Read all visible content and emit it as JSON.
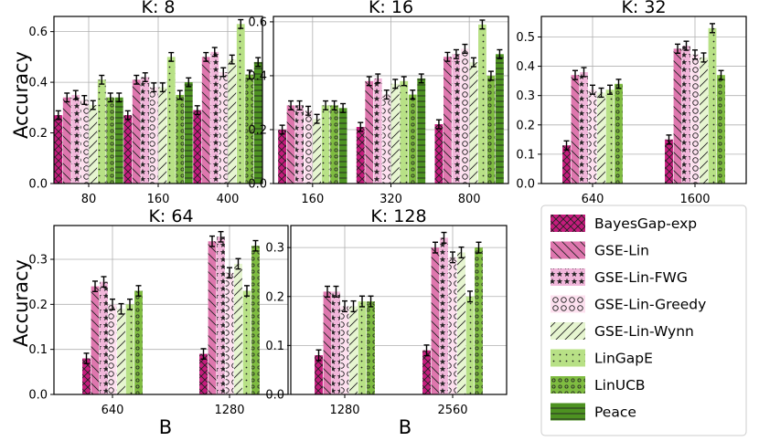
{
  "figure": {
    "ylabel": "Accuracy",
    "xlabel": "B"
  },
  "legend": {
    "placement": "bottom-right",
    "entries": [
      {
        "name": "BayesGap-exp",
        "color": "#c51b7d",
        "pattern": "cross-hatch"
      },
      {
        "name": "GSE-Lin",
        "color": "#de77ae",
        "pattern": "backslash"
      },
      {
        "name": "GSE-Lin-FWG",
        "color": "#f1b6da",
        "pattern": "stars"
      },
      {
        "name": "GSE-Lin-Greedy",
        "color": "#fde0ef",
        "pattern": "circles"
      },
      {
        "name": "GSE-Lin-Wynn",
        "color": "#e6f5d0",
        "pattern": "slash"
      },
      {
        "name": "LinGapE",
        "color": "#b8e186",
        "pattern": "dots"
      },
      {
        "name": "LinUCB",
        "color": "#7fbc41",
        "pattern": "small-circles"
      },
      {
        "name": "Peace",
        "color": "#4d9221",
        "pattern": "horizontal"
      }
    ]
  },
  "chart_data": [
    {
      "type": "bar",
      "title": "K: 8",
      "categories": [
        "80",
        "160",
        "400"
      ],
      "ylim": [
        0,
        0.66
      ],
      "yticks": [
        "0.0",
        "0.2",
        "0.4",
        "0.6"
      ],
      "ytick_values": [
        0,
        0.2,
        0.4,
        0.6
      ],
      "grid": true,
      "series": [
        {
          "name": "BayesGap-exp",
          "values": [
            0.27,
            0.27,
            0.29
          ]
        },
        {
          "name": "GSE-Lin",
          "values": [
            0.34,
            0.41,
            0.5
          ]
        },
        {
          "name": "GSE-Lin-FWG",
          "values": [
            0.35,
            0.42,
            0.52
          ]
        },
        {
          "name": "GSE-Lin-Greedy",
          "values": [
            0.33,
            0.38,
            0.44
          ]
        },
        {
          "name": "GSE-Lin-Wynn",
          "values": [
            0.31,
            0.38,
            0.49
          ]
        },
        {
          "name": "LinGapE",
          "values": [
            0.41,
            0.5,
            0.63
          ]
        },
        {
          "name": "LinUCB",
          "values": [
            0.34,
            0.35,
            0.43
          ]
        },
        {
          "name": "Peace",
          "values": [
            0.34,
            0.4,
            0.48
          ]
        }
      ]
    },
    {
      "type": "bar",
      "title": "K: 16",
      "categories": [
        "160",
        "320",
        "800"
      ],
      "ylim": [
        0,
        0.62
      ],
      "yticks": [
        "0.0",
        "0.2",
        "0.4",
        "0.6"
      ],
      "ytick_values": [
        0,
        0.2,
        0.4,
        0.6
      ],
      "grid": true,
      "series": [
        {
          "name": "BayesGap-exp",
          "values": [
            0.2,
            0.21,
            0.22
          ]
        },
        {
          "name": "GSE-Lin",
          "values": [
            0.29,
            0.38,
            0.47
          ]
        },
        {
          "name": "GSE-Lin-FWG",
          "values": [
            0.29,
            0.39,
            0.48
          ]
        },
        {
          "name": "GSE-Lin-Greedy",
          "values": [
            0.27,
            0.33,
            0.5
          ]
        },
        {
          "name": "GSE-Lin-Wynn",
          "values": [
            0.24,
            0.37,
            0.45
          ]
        },
        {
          "name": "LinGapE",
          "values": [
            0.29,
            0.38,
            0.59
          ]
        },
        {
          "name": "LinUCB",
          "values": [
            0.29,
            0.33,
            0.4
          ]
        },
        {
          "name": "Peace",
          "values": [
            0.28,
            0.39,
            0.48
          ]
        }
      ]
    },
    {
      "type": "bar",
      "title": "K: 32",
      "categories": [
        "640",
        "1600"
      ],
      "ylim": [
        0,
        0.57
      ],
      "yticks": [
        "0.0",
        "0.1",
        "0.2",
        "0.3",
        "0.4",
        "0.5"
      ],
      "ytick_values": [
        0,
        0.1,
        0.2,
        0.3,
        0.4,
        0.5
      ],
      "grid": true,
      "series": [
        {
          "name": "BayesGap-exp",
          "values": [
            0.13,
            0.15
          ]
        },
        {
          "name": "GSE-Lin",
          "values": [
            0.37,
            0.46
          ]
        },
        {
          "name": "GSE-Lin-FWG",
          "values": [
            0.38,
            0.47
          ]
        },
        {
          "name": "GSE-Lin-Greedy",
          "values": [
            0.32,
            0.44
          ]
        },
        {
          "name": "GSE-Lin-Wynn",
          "values": [
            0.31,
            0.43
          ]
        },
        {
          "name": "LinGapE",
          "values": [
            0.32,
            0.53
          ]
        },
        {
          "name": "LinUCB",
          "values": [
            0.34,
            0.37
          ]
        }
      ]
    },
    {
      "type": "bar",
      "title": "K: 64",
      "categories": [
        "640",
        "1280"
      ],
      "ylim": [
        0,
        0.375
      ],
      "yticks": [
        "0.0",
        "0.1",
        "0.2",
        "0.3"
      ],
      "ytick_values": [
        0,
        0.1,
        0.2,
        0.3
      ],
      "grid": true,
      "series": [
        {
          "name": "BayesGap-exp",
          "values": [
            0.08,
            0.09
          ]
        },
        {
          "name": "GSE-Lin",
          "values": [
            0.24,
            0.34
          ]
        },
        {
          "name": "GSE-Lin-FWG",
          "values": [
            0.25,
            0.35
          ]
        },
        {
          "name": "GSE-Lin-Greedy",
          "values": [
            0.2,
            0.27
          ]
        },
        {
          "name": "GSE-Lin-Wynn",
          "values": [
            0.19,
            0.29
          ]
        },
        {
          "name": "LinGapE",
          "values": [
            0.2,
            0.23
          ]
        },
        {
          "name": "LinUCB",
          "values": [
            0.23,
            0.33
          ]
        }
      ]
    },
    {
      "type": "bar",
      "title": "K: 128",
      "categories": [
        "1280",
        "2560"
      ],
      "ylim": [
        0,
        0.345
      ],
      "yticks": [
        "0.0",
        "0.1",
        "0.2",
        "0.3"
      ],
      "ytick_values": [
        0,
        0.1,
        0.2,
        0.3
      ],
      "grid": true,
      "series": [
        {
          "name": "BayesGap-exp",
          "values": [
            0.08,
            0.09
          ]
        },
        {
          "name": "GSE-Lin",
          "values": [
            0.21,
            0.3
          ]
        },
        {
          "name": "GSE-Lin-FWG",
          "values": [
            0.21,
            0.32
          ]
        },
        {
          "name": "GSE-Lin-Greedy",
          "values": [
            0.18,
            0.28
          ]
        },
        {
          "name": "GSE-Lin-Wynn",
          "values": [
            0.18,
            0.29
          ]
        },
        {
          "name": "LinGapE",
          "values": [
            0.19,
            0.2
          ]
        },
        {
          "name": "LinUCB",
          "values": [
            0.19,
            0.3
          ]
        }
      ]
    }
  ]
}
